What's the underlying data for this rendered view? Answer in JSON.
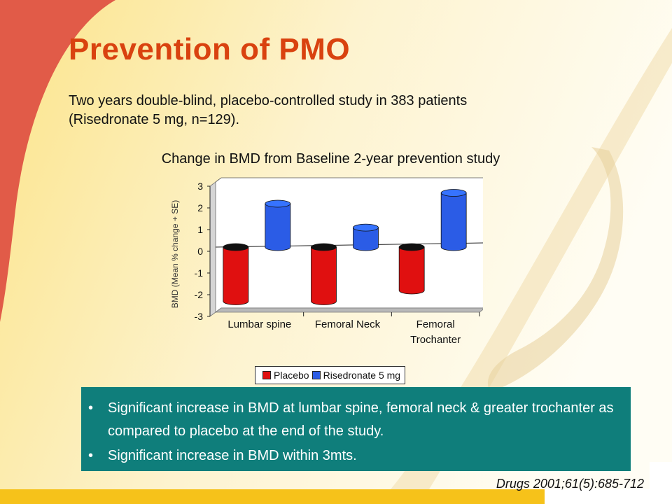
{
  "slide": {
    "title": "Prevention of PMO",
    "intro_line1": "Two years double-blind, placebo-controlled study in 383 patients",
    "intro_line2": "(Risedronate 5 mg, n=129).",
    "citation": "Drugs 2001;61(5):685-712"
  },
  "bullets": [
    "Significant increase in BMD at lumbar spine, femoral neck & greater trochanter as compared to placebo at the end of the study.",
    "Significant  increase in BMD within 3mts."
  ],
  "bullet_symbol": "•",
  "chart_data": {
    "type": "bar",
    "title": "Change in BMD from Baseline 2-year prevention study",
    "xlabel": "",
    "ylabel": "BMD (Mean % change + SE)",
    "categories": [
      "Lumbar spine",
      "Femoral Neck",
      "Femoral Trochanter"
    ],
    "series": [
      {
        "name": "Placebo",
        "values": [
          -2.5,
          -2.5,
          -2.0
        ],
        "color": "#e01010"
      },
      {
        "name": "Risedronate 5 mg",
        "values": [
          2.0,
          0.9,
          2.5
        ],
        "color": "#2b5ce6"
      }
    ],
    "ylim": [
      -3,
      3
    ],
    "yticks": [
      "3",
      "2",
      "1",
      "0",
      "-1",
      "-2",
      "-3"
    ],
    "legend": "bottom",
    "grid": false,
    "style": "3d-cylinder"
  },
  "colors": {
    "title": "#d9420f",
    "bullet_box": "#0f7e7b",
    "accent_red": "#e15b48",
    "accent_yellow": "#f6c21a"
  }
}
